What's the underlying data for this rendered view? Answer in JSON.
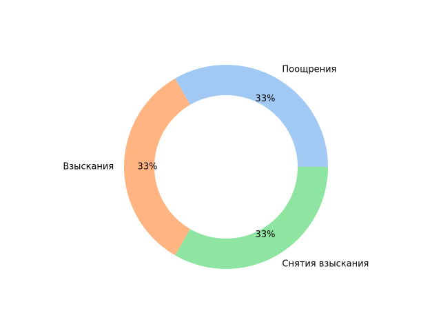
{
  "chart_data": {
    "type": "pie",
    "style": "donut",
    "categories": [
      "Поощрения",
      "Взыскания",
      "Снятия взыскания"
    ],
    "values": [
      1,
      1,
      1
    ],
    "percent_labels": [
      "33%",
      "33%",
      "33%"
    ],
    "colors": [
      "#a1c9f4",
      "#ffb482",
      "#8de5a1"
    ],
    "legend": "none"
  }
}
